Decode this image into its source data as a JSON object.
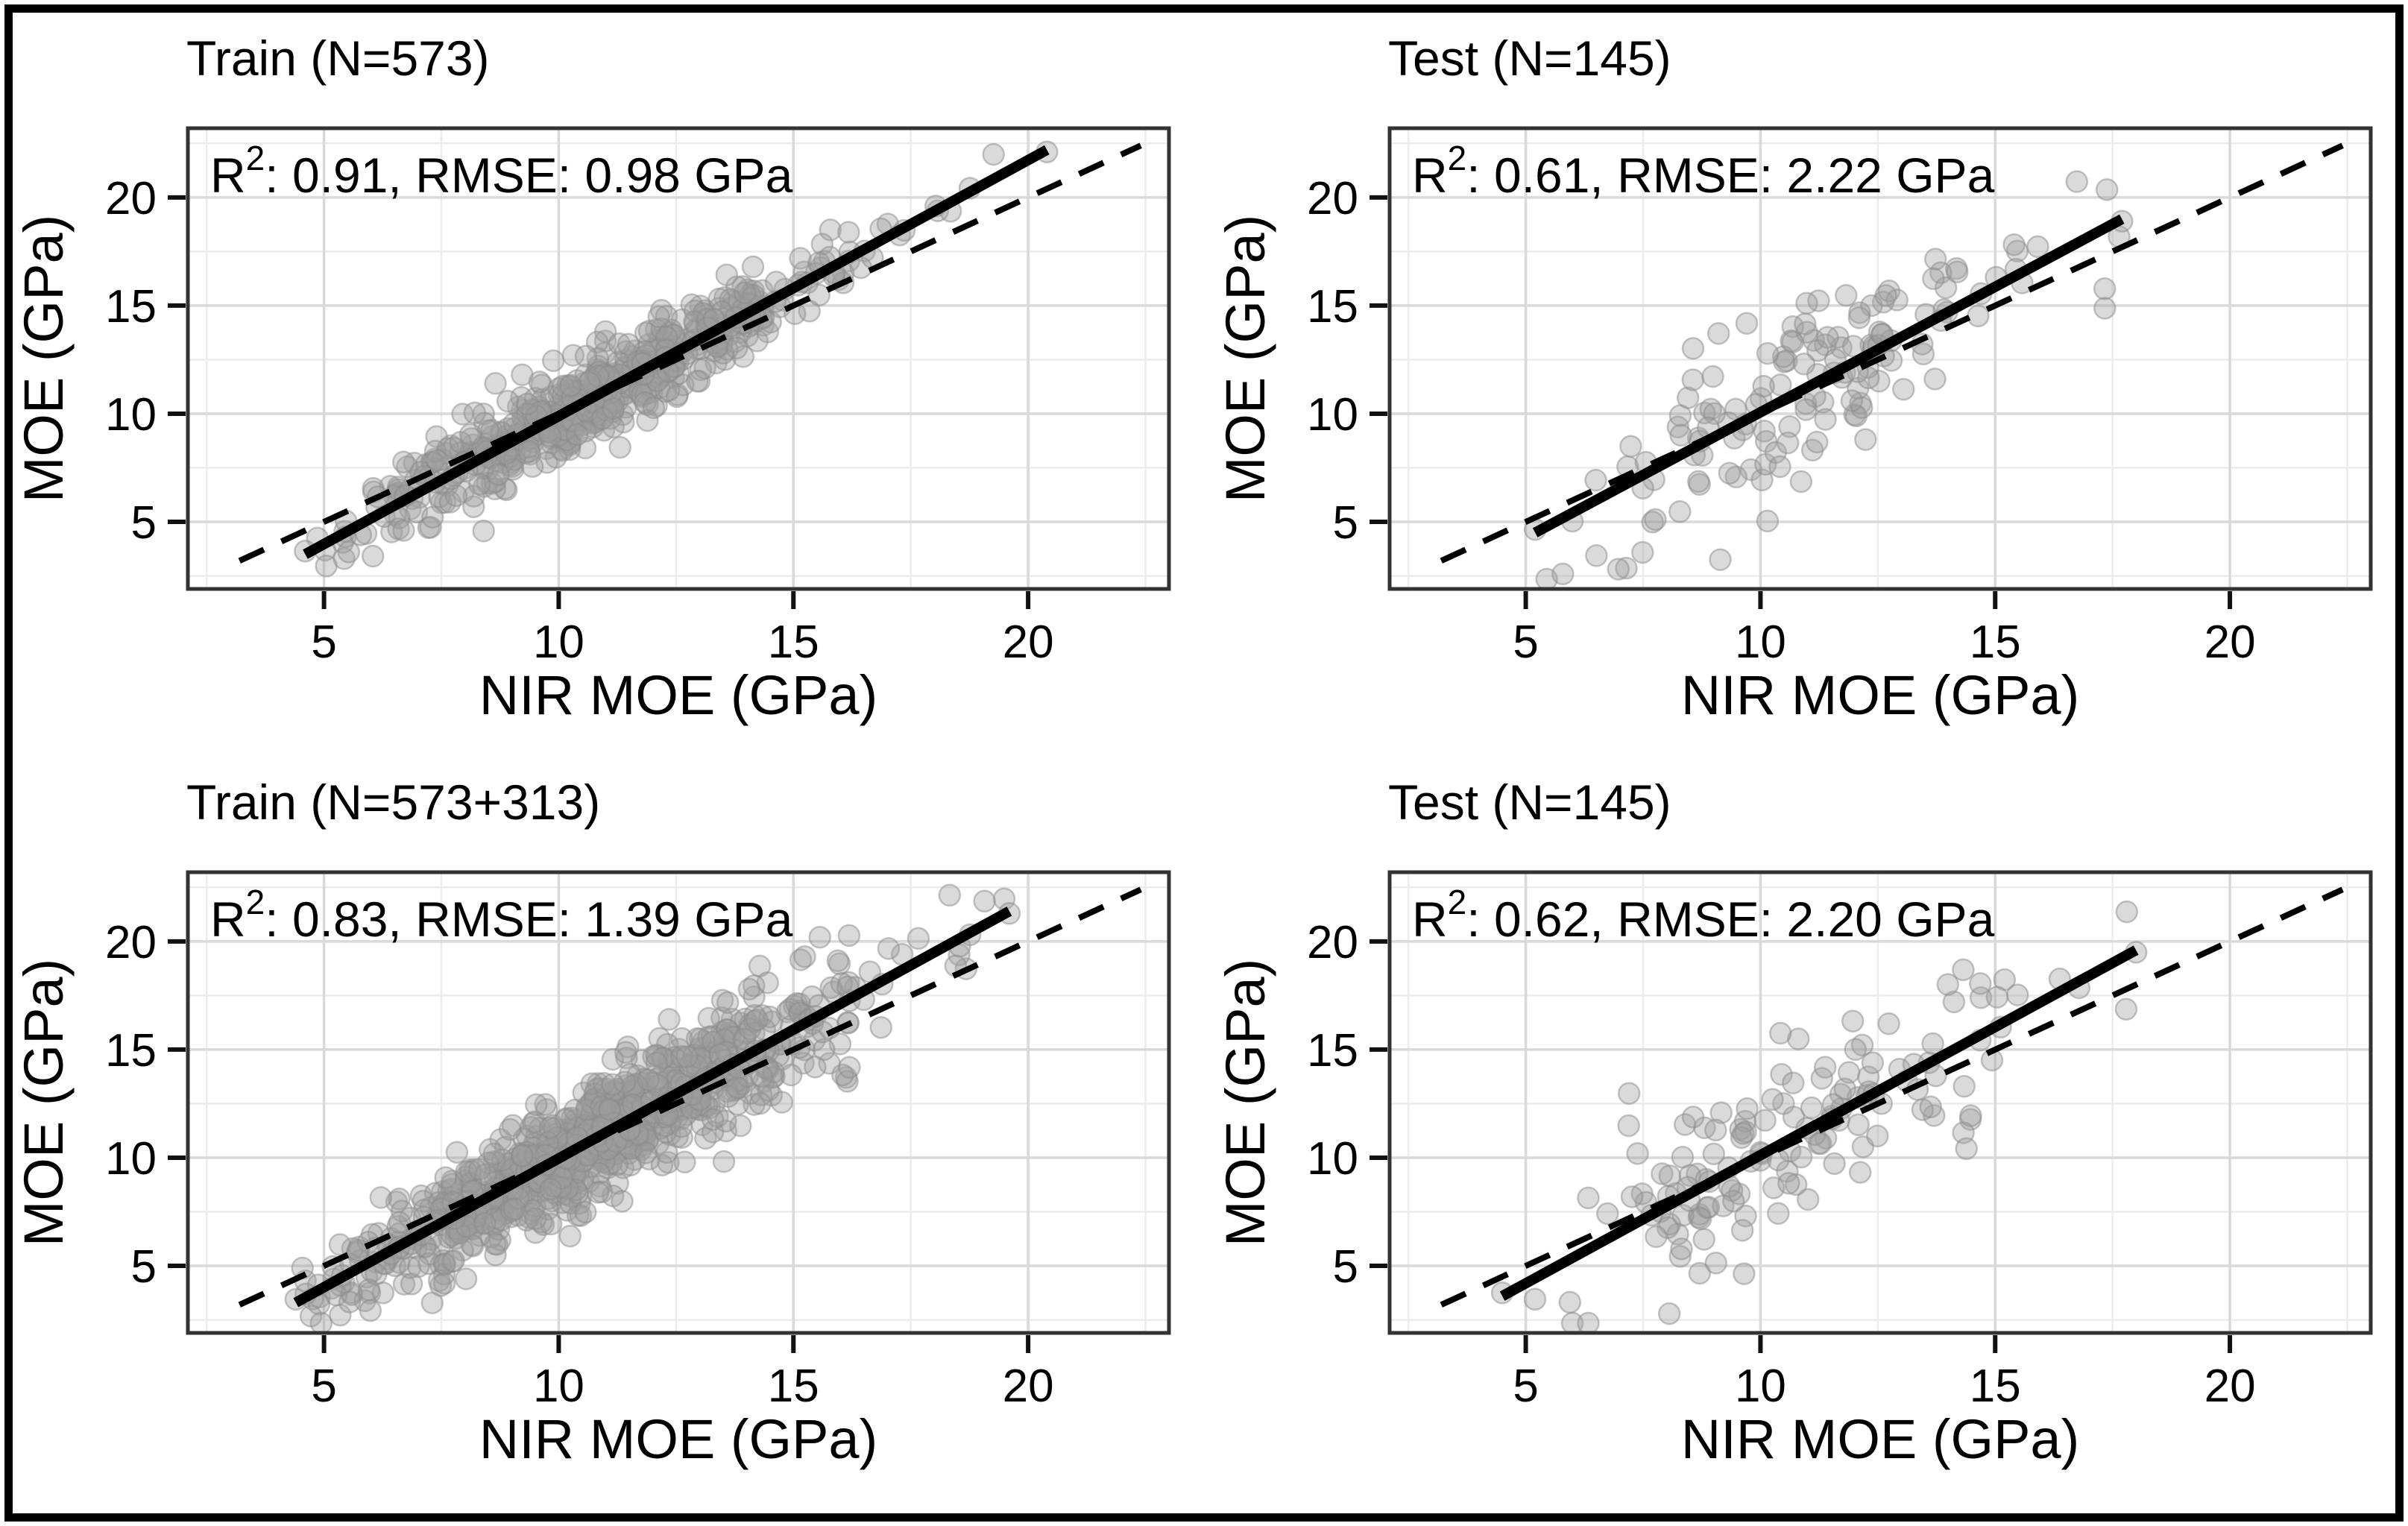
{
  "palette": {
    "background": "#ffffff",
    "outer_border": "#000000",
    "panel_border": "#333333",
    "major_grid": "#d9d9d9",
    "minor_grid": "#ececec",
    "point_fill": "#9f9f9f",
    "point_stroke": "#8c8c8c",
    "line_color": "#000000",
    "text_color": "#000000"
  },
  "chart_data": [
    {
      "id": "train-573",
      "position": "top-left",
      "type": "scatter",
      "title": "Train (N=573)",
      "annotation": {
        "base": "R",
        "sup": "2",
        "rest": ": 0.91, RMSE: 0.98 GPa"
      },
      "stats": {
        "n": 573,
        "r2": 0.91,
        "rmse_gpa": 0.98
      },
      "xlabel": "NIR MOE (GPa)",
      "ylabel": "MOE (GPa)",
      "xlim": [
        2.1,
        23.0
      ],
      "ylim": [
        1.9,
        23.2
      ],
      "ticks": [
        5,
        10,
        15,
        20
      ],
      "minor_ticks": [
        2.5,
        7.5,
        12.5,
        17.5,
        22.5
      ],
      "grid": true,
      "fit_line": {
        "x1": 4.6,
        "y1": 3.5,
        "x2": 20.4,
        "y2": 22.2
      },
      "identity_line": {
        "x1": 3.2,
        "y1": 3.2,
        "x2": 22.4,
        "y2": 22.4
      },
      "points_model": {
        "seed": 7,
        "n": 573,
        "x_mean": 10.9,
        "x_sd": 2.6,
        "x_min": 4.6,
        "x_max": 20.4,
        "slope": 1.184,
        "intercept": -1.95,
        "noise_sd": 0.95
      }
    },
    {
      "id": "test-145-a",
      "position": "top-right",
      "type": "scatter",
      "title": "Test (N=145)",
      "annotation": {
        "base": "R",
        "sup": "2",
        "rest": ": 0.61, RMSE: 2.22 GPa"
      },
      "stats": {
        "n": 145,
        "r2": 0.61,
        "rmse_gpa": 2.22
      },
      "xlabel": "NIR MOE (GPa)",
      "ylabel": "MOE (GPa)",
      "xlim": [
        2.1,
        23.0
      ],
      "ylim": [
        1.9,
        23.2
      ],
      "ticks": [
        5,
        10,
        15,
        20
      ],
      "minor_ticks": [
        2.5,
        7.5,
        12.5,
        17.5,
        22.5
      ],
      "grid": true,
      "fit_line": {
        "x1": 5.2,
        "y1": 4.5,
        "x2": 17.7,
        "y2": 19.0
      },
      "identity_line": {
        "x1": 3.2,
        "y1": 3.2,
        "x2": 22.4,
        "y2": 22.4
      },
      "points_model": {
        "seed": 13,
        "n": 145,
        "x_mean": 10.4,
        "x_sd": 2.7,
        "x_min": 5.2,
        "x_max": 17.7,
        "slope": 1.16,
        "intercept": -1.53,
        "noise_sd": 2.1
      }
    },
    {
      "id": "train-573-313",
      "position": "bottom-left",
      "type": "scatter",
      "title": "Train (N=573+313)",
      "annotation": {
        "base": "R",
        "sup": "2",
        "rest": ": 0.83, RMSE: 1.39 GPa"
      },
      "stats": {
        "n": 886,
        "r2": 0.83,
        "rmse_gpa": 1.39
      },
      "xlabel": "NIR MOE (GPa)",
      "ylabel": "MOE (GPa)",
      "xlim": [
        2.1,
        23.0
      ],
      "ylim": [
        1.9,
        23.2
      ],
      "ticks": [
        5,
        10,
        15,
        20
      ],
      "minor_ticks": [
        2.5,
        7.5,
        12.5,
        17.5,
        22.5
      ],
      "grid": true,
      "fit_line": {
        "x1": 4.4,
        "y1": 3.3,
        "x2": 19.6,
        "y2": 21.4
      },
      "identity_line": {
        "x1": 3.2,
        "y1": 3.2,
        "x2": 22.4,
        "y2": 22.4
      },
      "points_model": {
        "seed": 5,
        "n": 886,
        "x_mean": 10.7,
        "x_sd": 2.75,
        "x_min": 4.4,
        "x_max": 19.6,
        "slope": 1.19,
        "intercept": -1.93,
        "noise_sd": 1.35
      }
    },
    {
      "id": "test-145-b",
      "position": "bottom-right",
      "type": "scatter",
      "title": "Test (N=145)",
      "annotation": {
        "base": "R",
        "sup": "2",
        "rest": ": 0.62, RMSE: 2.20 GPa"
      },
      "stats": {
        "n": 145,
        "r2": 0.62,
        "rmse_gpa": 2.2
      },
      "xlabel": "NIR MOE (GPa)",
      "ylabel": "MOE (GPa)",
      "xlim": [
        2.1,
        23.0
      ],
      "ylim": [
        1.9,
        23.2
      ],
      "ticks": [
        5,
        10,
        15,
        20
      ],
      "minor_ticks": [
        2.5,
        7.5,
        12.5,
        17.5,
        22.5
      ],
      "grid": true,
      "fit_line": {
        "x1": 4.5,
        "y1": 3.6,
        "x2": 18.0,
        "y2": 19.6
      },
      "identity_line": {
        "x1": 3.2,
        "y1": 3.2,
        "x2": 22.4,
        "y2": 22.4
      },
      "points_model": {
        "seed": 29,
        "n": 145,
        "x_mean": 10.8,
        "x_sd": 2.7,
        "x_min": 4.5,
        "x_max": 18.0,
        "slope": 1.185,
        "intercept": -1.73,
        "noise_sd": 2.1
      }
    }
  ]
}
